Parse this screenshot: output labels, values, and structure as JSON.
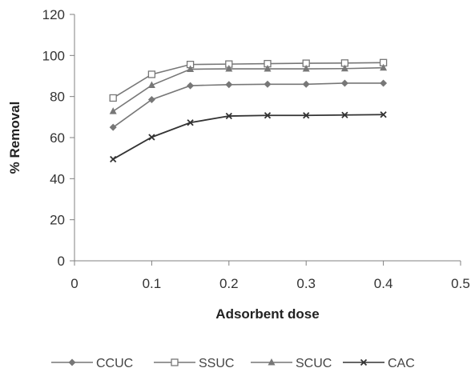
{
  "chart_data": {
    "type": "line",
    "title": "",
    "xlabel": "Adsorbent dose",
    "ylabel": "% Removal",
    "xlim": [
      0,
      0.5
    ],
    "ylim": [
      0,
      120
    ],
    "x_ticks": [
      "0",
      "0.1",
      "0.2",
      "0.3",
      "0.4",
      "0.5"
    ],
    "y_ticks": [
      "0",
      "20",
      "40",
      "60",
      "80",
      "100",
      "120"
    ],
    "grid": false,
    "legend_position": "bottom",
    "x": [
      0.05,
      0.1,
      0.15,
      0.2,
      0.25,
      0.3,
      0.35,
      0.4
    ],
    "series": [
      {
        "name": "CCUC",
        "marker": "diamond",
        "values": [
          65,
          78.5,
          85.3,
          85.8,
          86,
          86,
          86.5,
          86.5
        ]
      },
      {
        "name": "SSUC",
        "marker": "square-open",
        "values": [
          79.3,
          90.8,
          95.6,
          95.8,
          96,
          96.2,
          96.3,
          96.5
        ]
      },
      {
        "name": "SCUC",
        "marker": "triangle",
        "values": [
          72.8,
          85.5,
          93.3,
          93.5,
          93.5,
          93.5,
          93.6,
          94
        ]
      },
      {
        "name": "CAC",
        "marker": "x",
        "values": [
          49.5,
          60.2,
          67.3,
          70.5,
          70.8,
          70.8,
          71,
          71.2
        ]
      }
    ],
    "colors": {
      "line": "#777777",
      "cac_line": "#333333",
      "axis": "#808080"
    }
  }
}
